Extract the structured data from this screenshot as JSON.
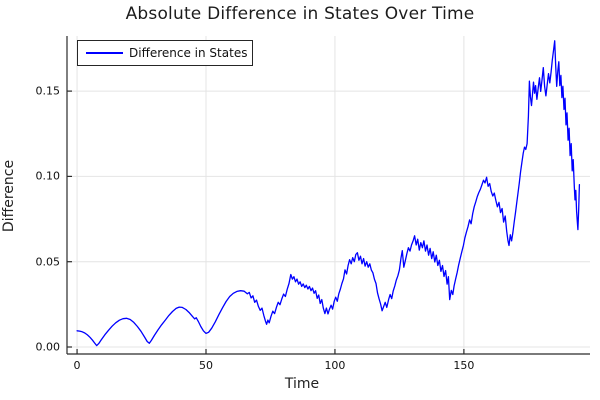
{
  "title": "Absolute Difference in States Over Time",
  "colors": {
    "line": "#0000ff",
    "grid": "#e4e4e4",
    "axis": "#2b2b2b",
    "background": "#ffffff",
    "text": "#1c1c1c"
  },
  "legend": {
    "items": [
      {
        "label": "Difference in States",
        "color": "#0000ff"
      }
    ],
    "position": "top-left"
  },
  "chart_data": {
    "type": "line",
    "title": "Absolute Difference in States Over Time",
    "xlabel": "Time",
    "ylabel": "Difference",
    "xlim": [
      -3.9,
      198.9
    ],
    "ylim": [
      -0.0041,
      0.1823
    ],
    "x_ticks": [
      0,
      50,
      100,
      150
    ],
    "x_tick_labels": [
      "0",
      "50",
      "100",
      "150"
    ],
    "y_ticks": [
      0.0,
      0.05,
      0.1,
      0.15
    ],
    "y_tick_labels": [
      "0.00",
      "0.05",
      "0.10",
      "0.15"
    ],
    "grid": true,
    "legend_position": "top-left",
    "series": [
      {
        "name": "Difference in States",
        "color": "#0000ff",
        "points": [
          [
            0,
            0.0095
          ],
          [
            1,
            0.0093
          ],
          [
            2,
            0.0089
          ],
          [
            3,
            0.0082
          ],
          [
            4,
            0.0071
          ],
          [
            5,
            0.0057
          ],
          [
            6,
            0.004
          ],
          [
            7,
            0.002
          ],
          [
            7.6,
            0.0008
          ],
          [
            8.4,
            0.002
          ],
          [
            9.4,
            0.0042
          ],
          [
            10.8,
            0.0072
          ],
          [
            12.2,
            0.0098
          ],
          [
            13.6,
            0.0122
          ],
          [
            15,
            0.0142
          ],
          [
            16.4,
            0.0157
          ],
          [
            17.8,
            0.0166
          ],
          [
            19.2,
            0.0168
          ],
          [
            20.6,
            0.0161
          ],
          [
            22,
            0.0144
          ],
          [
            23.4,
            0.012
          ],
          [
            24.8,
            0.0092
          ],
          [
            26.2,
            0.0058
          ],
          [
            27.2,
            0.0032
          ],
          [
            28,
            0.0022
          ],
          [
            28.8,
            0.0038
          ],
          [
            30,
            0.0068
          ],
          [
            31.4,
            0.01
          ],
          [
            32.8,
            0.013
          ],
          [
            34.2,
            0.0158
          ],
          [
            35.6,
            0.0185
          ],
          [
            37,
            0.0208
          ],
          [
            38.4,
            0.0226
          ],
          [
            39.6,
            0.0234
          ],
          [
            40.8,
            0.0232
          ],
          [
            42.2,
            0.022
          ],
          [
            43.6,
            0.02
          ],
          [
            44.8,
            0.0178
          ],
          [
            45.6,
            0.0165
          ],
          [
            46.2,
            0.0172
          ],
          [
            47,
            0.015
          ],
          [
            48,
            0.012
          ],
          [
            49,
            0.0095
          ],
          [
            50,
            0.008
          ],
          [
            51,
            0.0086
          ],
          [
            52.2,
            0.011
          ],
          [
            53.6,
            0.0148
          ],
          [
            55,
            0.019
          ],
          [
            56.4,
            0.023
          ],
          [
            57.8,
            0.0267
          ],
          [
            59.2,
            0.0296
          ],
          [
            60.6,
            0.0315
          ],
          [
            62,
            0.0326
          ],
          [
            63.4,
            0.033
          ],
          [
            64.8,
            0.0327
          ],
          [
            66,
            0.0312
          ],
          [
            66.8,
            0.032
          ],
          [
            67.5,
            0.0288
          ],
          [
            68.2,
            0.03
          ],
          [
            68.9,
            0.0262
          ],
          [
            69.6,
            0.0275
          ],
          [
            70.3,
            0.0238
          ],
          [
            71,
            0.0215
          ],
          [
            71.7,
            0.0228
          ],
          [
            72.4,
            0.0185
          ],
          [
            73,
            0.0155
          ],
          [
            73.5,
            0.0133
          ],
          [
            74,
            0.0158
          ],
          [
            74.5,
            0.0142
          ],
          [
            75.2,
            0.018
          ],
          [
            75.9,
            0.021
          ],
          [
            76.6,
            0.0196
          ],
          [
            77.3,
            0.0232
          ],
          [
            78,
            0.0262
          ],
          [
            78.7,
            0.0248
          ],
          [
            79.4,
            0.0282
          ],
          [
            80.1,
            0.031
          ],
          [
            80.8,
            0.0296
          ],
          [
            81.5,
            0.0338
          ],
          [
            82.2,
            0.0372
          ],
          [
            82.9,
            0.0425
          ],
          [
            83.5,
            0.0398
          ],
          [
            84.1,
            0.0412
          ],
          [
            84.7,
            0.0382
          ],
          [
            85.3,
            0.0398
          ],
          [
            85.9,
            0.0368
          ],
          [
            86.5,
            0.0382
          ],
          [
            87.1,
            0.0355
          ],
          [
            87.7,
            0.037
          ],
          [
            88.3,
            0.0348
          ],
          [
            88.9,
            0.0362
          ],
          [
            89.5,
            0.034
          ],
          [
            90.1,
            0.0355
          ],
          [
            90.7,
            0.033
          ],
          [
            91.3,
            0.0345
          ],
          [
            91.9,
            0.0315
          ],
          [
            92.5,
            0.033
          ],
          [
            93.1,
            0.0285
          ],
          [
            93.7,
            0.0305
          ],
          [
            94.3,
            0.0255
          ],
          [
            94.9,
            0.0278
          ],
          [
            95.5,
            0.0228
          ],
          [
            96.1,
            0.0196
          ],
          [
            96.7,
            0.0228
          ],
          [
            97.3,
            0.0194
          ],
          [
            97.9,
            0.0222
          ],
          [
            98.5,
            0.0245
          ],
          [
            99.1,
            0.0222
          ],
          [
            99.7,
            0.0268
          ],
          [
            100.3,
            0.0292
          ],
          [
            100.9,
            0.0268
          ],
          [
            101.5,
            0.0312
          ],
          [
            102.1,
            0.034
          ],
          [
            102.7,
            0.0372
          ],
          [
            103.3,
            0.04
          ],
          [
            103.9,
            0.0452
          ],
          [
            104.5,
            0.0428
          ],
          [
            105.1,
            0.0478
          ],
          [
            105.7,
            0.0512
          ],
          [
            106.3,
            0.0488
          ],
          [
            106.9,
            0.0524
          ],
          [
            107.5,
            0.05
          ],
          [
            108.1,
            0.0542
          ],
          [
            108.7,
            0.0553
          ],
          [
            109.3,
            0.0508
          ],
          [
            109.9,
            0.0532
          ],
          [
            110.5,
            0.0488
          ],
          [
            111.1,
            0.0518
          ],
          [
            111.7,
            0.0474
          ],
          [
            112.3,
            0.05
          ],
          [
            112.9,
            0.0468
          ],
          [
            113.5,
            0.0488
          ],
          [
            114.1,
            0.0452
          ],
          [
            114.7,
            0.0435
          ],
          [
            115.3,
            0.0398
          ],
          [
            115.9,
            0.0372
          ],
          [
            116.5,
            0.0318
          ],
          [
            117.1,
            0.0284
          ],
          [
            117.7,
            0.0252
          ],
          [
            118.3,
            0.0212
          ],
          [
            118.9,
            0.0238
          ],
          [
            119.5,
            0.0262
          ],
          [
            120.1,
            0.0232
          ],
          [
            120.8,
            0.0278
          ],
          [
            121.4,
            0.0308
          ],
          [
            122,
            0.0284
          ],
          [
            122.6,
            0.0328
          ],
          [
            123.2,
            0.0358
          ],
          [
            123.8,
            0.0392
          ],
          [
            124.4,
            0.0418
          ],
          [
            125,
            0.0452
          ],
          [
            125.6,
            0.0522
          ],
          [
            126.1,
            0.0565
          ],
          [
            126.7,
            0.0468
          ],
          [
            127.3,
            0.0508
          ],
          [
            127.9,
            0.0548
          ],
          [
            128.5,
            0.0582
          ],
          [
            129.1,
            0.0562
          ],
          [
            129.7,
            0.0598
          ],
          [
            130.3,
            0.0622
          ],
          [
            130.9,
            0.0652
          ],
          [
            131.5,
            0.0598
          ],
          [
            132.1,
            0.0632
          ],
          [
            132.7,
            0.0568
          ],
          [
            133.3,
            0.0612
          ],
          [
            133.9,
            0.0582
          ],
          [
            134.5,
            0.0622
          ],
          [
            135.1,
            0.0562
          ],
          [
            135.7,
            0.0598
          ],
          [
            136.3,
            0.0538
          ],
          [
            136.9,
            0.0578
          ],
          [
            137.5,
            0.0518
          ],
          [
            138.1,
            0.0558
          ],
          [
            138.7,
            0.0498
          ],
          [
            139.3,
            0.0538
          ],
          [
            139.9,
            0.0478
          ],
          [
            140.5,
            0.0508
          ],
          [
            141.1,
            0.0443
          ],
          [
            141.7,
            0.0478
          ],
          [
            142.3,
            0.0413
          ],
          [
            142.9,
            0.0448
          ],
          [
            143.5,
            0.0368
          ],
          [
            144,
            0.0412
          ],
          [
            144.5,
            0.0278
          ],
          [
            145.1,
            0.0332
          ],
          [
            145.7,
            0.0308
          ],
          [
            146.2,
            0.0358
          ],
          [
            146.8,
            0.0398
          ],
          [
            147.4,
            0.0438
          ],
          [
            148,
            0.0482
          ],
          [
            148.6,
            0.0522
          ],
          [
            149.2,
            0.0558
          ],
          [
            149.8,
            0.0595
          ],
          [
            150.4,
            0.064
          ],
          [
            151,
            0.0675
          ],
          [
            151.6,
            0.0705
          ],
          [
            152.2,
            0.0745
          ],
          [
            152.8,
            0.0722
          ],
          [
            153.4,
            0.0782
          ],
          [
            154,
            0.0822
          ],
          [
            154.6,
            0.0852
          ],
          [
            155.2,
            0.0882
          ],
          [
            155.8,
            0.0905
          ],
          [
            156.4,
            0.0925
          ],
          [
            157,
            0.095
          ],
          [
            157.6,
            0.0978
          ],
          [
            158.2,
            0.0962
          ],
          [
            158.8,
            0.0995
          ],
          [
            159.4,
            0.0942
          ],
          [
            160,
            0.0958
          ],
          [
            160.6,
            0.0912
          ],
          [
            161.2,
            0.0885
          ],
          [
            161.8,
            0.0902
          ],
          [
            162.4,
            0.0858
          ],
          [
            163,
            0.0822
          ],
          [
            163.6,
            0.0848
          ],
          [
            164.2,
            0.0788
          ],
          [
            164.8,
            0.0812
          ],
          [
            165.4,
            0.0732
          ],
          [
            166,
            0.0768
          ],
          [
            166.6,
            0.0678
          ],
          [
            167.1,
            0.0622
          ],
          [
            167.5,
            0.0595
          ],
          [
            168,
            0.0658
          ],
          [
            168.5,
            0.0622
          ],
          [
            169,
            0.0672
          ],
          [
            169.5,
            0.0732
          ],
          [
            170,
            0.0788
          ],
          [
            170.5,
            0.0848
          ],
          [
            171,
            0.0902
          ],
          [
            171.5,
            0.0962
          ],
          [
            172,
            0.1028
          ],
          [
            172.5,
            0.1082
          ],
          [
            173,
            0.1135
          ],
          [
            173.5,
            0.1172
          ],
          [
            174,
            0.1158
          ],
          [
            174.5,
            0.1192
          ],
          [
            175,
            0.1352
          ],
          [
            175.4,
            0.1558
          ],
          [
            175.8,
            0.1468
          ],
          [
            176.2,
            0.1415
          ],
          [
            176.6,
            0.1482
          ],
          [
            177,
            0.1552
          ],
          [
            177.4,
            0.1488
          ],
          [
            177.8,
            0.1532
          ],
          [
            178.3,
            0.1452
          ],
          [
            178.8,
            0.1518
          ],
          [
            179.3,
            0.1578
          ],
          [
            179.8,
            0.1498
          ],
          [
            180.3,
            0.1565
          ],
          [
            180.8,
            0.1638
          ],
          [
            181.3,
            0.1528
          ],
          [
            181.8,
            0.1472
          ],
          [
            182.3,
            0.1538
          ],
          [
            182.8,
            0.1602
          ],
          [
            183.3,
            0.1548
          ],
          [
            183.8,
            0.1612
          ],
          [
            184.3,
            0.1682
          ],
          [
            184.8,
            0.1742
          ],
          [
            185.2,
            0.1795
          ],
          [
            185.6,
            0.1648
          ],
          [
            186,
            0.1528
          ],
          [
            186.4,
            0.1618
          ],
          [
            186.8,
            0.1672
          ],
          [
            187.2,
            0.1532
          ],
          [
            187.6,
            0.1592
          ],
          [
            188,
            0.1462
          ],
          [
            188.4,
            0.1528
          ],
          [
            188.8,
            0.1392
          ],
          [
            189.2,
            0.1458
          ],
          [
            189.6,
            0.1302
          ],
          [
            190,
            0.1372
          ],
          [
            190.4,
            0.1212
          ],
          [
            190.8,
            0.1282
          ],
          [
            191.2,
            0.1122
          ],
          [
            191.6,
            0.1192
          ],
          [
            192,
            0.1032
          ],
          [
            192.4,
            0.1098
          ],
          [
            192.8,
            0.0942
          ],
          [
            193.1,
            0.0862
          ],
          [
            193.4,
            0.0918
          ],
          [
            193.7,
            0.0795
          ],
          [
            194,
            0.0728
          ],
          [
            194.2,
            0.0688
          ],
          [
            194.5,
            0.0808
          ],
          [
            194.8,
            0.0952
          ]
        ]
      }
    ]
  }
}
